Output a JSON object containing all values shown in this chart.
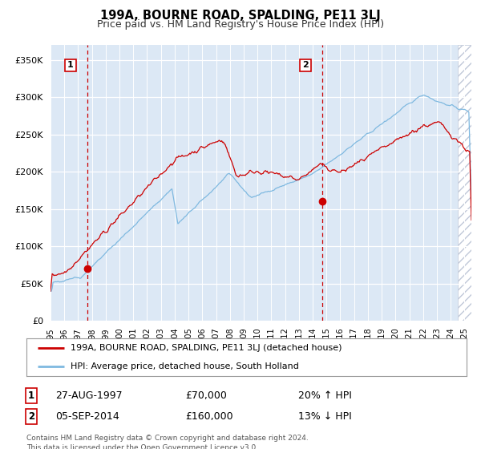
{
  "title": "199A, BOURNE ROAD, SPALDING, PE11 3LJ",
  "subtitle": "Price paid vs. HM Land Registry's House Price Index (HPI)",
  "legend_line1": "199A, BOURNE ROAD, SPALDING, PE11 3LJ (detached house)",
  "legend_line2": "HPI: Average price, detached house, South Holland",
  "annotation1_date": "27-AUG-1997",
  "annotation1_price": "£70,000",
  "annotation1_hpi": "20% ↑ HPI",
  "annotation2_date": "05-SEP-2014",
  "annotation2_price": "£160,000",
  "annotation2_hpi": "13% ↓ HPI",
  "footer": "Contains HM Land Registry data © Crown copyright and database right 2024.\nThis data is licensed under the Open Government Licence v3.0.",
  "sale1_year": 1997.65,
  "sale1_price": 70000,
  "sale2_year": 2014.68,
  "sale2_price": 160000,
  "hpi_color": "#7fb9e0",
  "price_color": "#cc0000",
  "bg_color": "#dce8f5",
  "vline_color": "#cc0000",
  "ylim": [
    0,
    370000
  ],
  "xmin": 1995.0,
  "xmax": 2025.5,
  "yticks": [
    0,
    50000,
    100000,
    150000,
    200000,
    250000,
    300000,
    350000
  ]
}
